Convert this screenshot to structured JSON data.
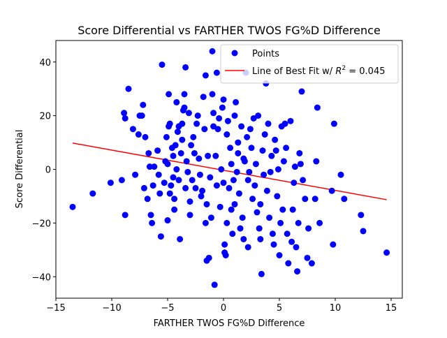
{
  "chart_data": {
    "type": "scatter",
    "title": "Score Differential vs FARTHER TWOS FG%D Difference",
    "xlabel": "FARTHER TWOS FG%D Difference",
    "ylabel": "Score Differential",
    "xlim": [
      -15,
      16
    ],
    "ylim": [
      -48,
      48
    ],
    "xticks": [
      -15,
      -10,
      -5,
      0,
      5,
      10,
      15
    ],
    "yticks": [
      -40,
      -20,
      0,
      20,
      40
    ],
    "xtick_labels": [
      "−15",
      "−10",
      "−5",
      "0",
      "5",
      "10",
      "15"
    ],
    "ytick_labels": [
      "−40",
      "−20",
      "0",
      "20",
      "40"
    ],
    "grid": false,
    "legend_position": "top-right",
    "legend": {
      "points_label": "Points",
      "fit_label_prefix": "Line of Best Fit w/ ",
      "fit_label_r2_symbol": "R",
      "fit_label_r2_sup": "2",
      "fit_label_value": " = 0.045"
    },
    "colors": {
      "points": "#0000ff",
      "fit_line": "#ff0000"
    },
    "fit_line": {
      "x": [
        -13.5,
        14.6
      ],
      "y": [
        9.8,
        -11.3
      ]
    },
    "series": [
      {
        "name": "Points",
        "points": [
          [
            -13.5,
            -14
          ],
          [
            -11.7,
            -9
          ],
          [
            -10.1,
            -5
          ],
          [
            -9.1,
            -4
          ],
          [
            -8.9,
            21
          ],
          [
            -8.8,
            19
          ],
          [
            -8.8,
            -17
          ],
          [
            -8.5,
            30
          ],
          [
            -8.1,
            15
          ],
          [
            -7.9,
            -2
          ],
          [
            -7.6,
            13
          ],
          [
            -7.5,
            20
          ],
          [
            -7.3,
            20
          ],
          [
            -7.2,
            24
          ],
          [
            -7.1,
            -7
          ],
          [
            -7.0,
            12
          ],
          [
            -6.8,
            -11
          ],
          [
            -6.7,
            6
          ],
          [
            -6.6,
            1
          ],
          [
            -6.5,
            -17
          ],
          [
            -6.4,
            -20
          ],
          [
            -6.3,
            -6
          ],
          [
            -6.2,
            1
          ],
          [
            -5.9,
            7
          ],
          [
            -5.8,
            -2
          ],
          [
            -5.7,
            -9
          ],
          [
            -5.6,
            -25
          ],
          [
            -5.5,
            39
          ],
          [
            -5.3,
            -5
          ],
          [
            -5.2,
            3
          ],
          [
            -5.1,
            12
          ],
          [
            -5.0,
            2
          ],
          [
            -5.0,
            -19
          ],
          [
            -4.9,
            28
          ],
          [
            -4.9,
            16
          ],
          [
            -4.8,
            17
          ],
          [
            -4.8,
            -9
          ],
          [
            -4.7,
            -6
          ],
          [
            -4.6,
            8
          ],
          [
            -4.5,
            5
          ],
          [
            -4.5,
            -3
          ],
          [
            -4.4,
            -15
          ],
          [
            -4.4,
            -11
          ],
          [
            -4.3,
            9
          ],
          [
            -4.2,
            0
          ],
          [
            -4.2,
            25
          ],
          [
            -4.1,
            14
          ],
          [
            -4.0,
            16
          ],
          [
            -4.0,
            -4
          ],
          [
            -3.9,
            -26
          ],
          [
            -3.8,
            6
          ],
          [
            -3.7,
            11
          ],
          [
            -3.7,
            17
          ],
          [
            -3.6,
            22
          ],
          [
            -3.5,
            23
          ],
          [
            -3.5,
            28
          ],
          [
            -3.4,
            38
          ],
          [
            -3.4,
            -7
          ],
          [
            -3.3,
            3
          ],
          [
            -3.2,
            -1
          ],
          [
            -3.1,
            21
          ],
          [
            -3.0,
            -17
          ],
          [
            -3.0,
            -12
          ],
          [
            -2.9,
            9
          ],
          [
            -2.8,
            -4
          ],
          [
            -2.7,
            12
          ],
          [
            -2.6,
            6
          ],
          [
            -2.5,
            -7
          ],
          [
            -2.4,
            17
          ],
          [
            -2.3,
            20
          ],
          [
            -2.2,
            4
          ],
          [
            -2.1,
            -2
          ],
          [
            -2.0,
            -10
          ],
          [
            -1.9,
            -8
          ],
          [
            -1.8,
            27
          ],
          [
            -1.7,
            15
          ],
          [
            -1.6,
            -20
          ],
          [
            -1.6,
            35
          ],
          [
            -1.5,
            -13
          ],
          [
            -1.5,
            -34
          ],
          [
            -1.4,
            5
          ],
          [
            -1.3,
            -33
          ],
          [
            -1.2,
            -3
          ],
          [
            -1.1,
            -18
          ],
          [
            -1.0,
            44
          ],
          [
            -1.0,
            28
          ],
          [
            -0.9,
            21
          ],
          [
            -0.9,
            16
          ],
          [
            -0.8,
            -43
          ],
          [
            -0.7,
            5
          ],
          [
            -0.6,
            36
          ],
          [
            -0.6,
            -6
          ],
          [
            -0.5,
            15
          ],
          [
            -0.4,
            19
          ],
          [
            -0.3,
            -14
          ],
          [
            -0.2,
            0
          ],
          [
            -0.1,
            23
          ],
          [
            0.0,
            26
          ],
          [
            0.0,
            -5
          ],
          [
            0.1,
            -31
          ],
          [
            0.1,
            -28
          ],
          [
            0.2,
            -32
          ],
          [
            0.3,
            -20
          ],
          [
            0.3,
            13
          ],
          [
            0.4,
            18
          ],
          [
            0.5,
            -7
          ],
          [
            0.6,
            8
          ],
          [
            0.7,
            2
          ],
          [
            0.7,
            -15
          ],
          [
            0.8,
            -24
          ],
          [
            0.9,
            -4
          ],
          [
            1.0,
            -13
          ],
          [
            1.0,
            20
          ],
          [
            1.1,
            25
          ],
          [
            1.2,
            -1
          ],
          [
            1.3,
            10
          ],
          [
            1.3,
            6
          ],
          [
            1.4,
            -9
          ],
          [
            1.5,
            -22
          ],
          [
            1.6,
            16
          ],
          [
            1.7,
            -18
          ],
          [
            1.8,
            4
          ],
          [
            1.8,
            -26
          ],
          [
            1.9,
            3
          ],
          [
            2.0,
            36
          ],
          [
            2.1,
            12
          ],
          [
            2.2,
            -4
          ],
          [
            2.2,
            -29
          ],
          [
            2.3,
            -1
          ],
          [
            2.4,
            15
          ],
          [
            2.5,
            8
          ],
          [
            2.6,
            -11
          ],
          [
            2.7,
            19
          ],
          [
            2.8,
            -6
          ],
          [
            2.9,
            2
          ],
          [
            3.0,
            -16
          ],
          [
            3.1,
            20
          ],
          [
            3.2,
            -22
          ],
          [
            3.3,
            -13
          ],
          [
            3.3,
            -26
          ],
          [
            3.4,
            -39
          ],
          [
            3.5,
            7
          ],
          [
            3.6,
            -2
          ],
          [
            3.7,
            13
          ],
          [
            3.8,
            32
          ],
          [
            3.9,
            -8
          ],
          [
            4.0,
            17
          ],
          [
            4.1,
            -18
          ],
          [
            4.2,
            -1
          ],
          [
            4.3,
            5
          ],
          [
            4.4,
            -24
          ],
          [
            4.5,
            -28
          ],
          [
            4.6,
            11
          ],
          [
            4.7,
            7
          ],
          [
            4.8,
            -10
          ],
          [
            4.9,
            0
          ],
          [
            5.0,
            -32
          ],
          [
            5.1,
            -20
          ],
          [
            5.2,
            16
          ],
          [
            5.3,
            -15
          ],
          [
            5.4,
            3
          ],
          [
            5.5,
            17
          ],
          [
            5.6,
            8
          ],
          [
            5.7,
            -24
          ],
          [
            5.8,
            -35
          ],
          [
            6.0,
            18
          ],
          [
            6.1,
            -27
          ],
          [
            6.2,
            -15
          ],
          [
            6.3,
            -5
          ],
          [
            6.4,
            1
          ],
          [
            6.5,
            -29
          ],
          [
            6.6,
            -38
          ],
          [
            6.7,
            -20
          ],
          [
            6.8,
            6
          ],
          [
            6.9,
            2
          ],
          [
            7.0,
            29
          ],
          [
            7.1,
            -4
          ],
          [
            7.3,
            -11
          ],
          [
            7.5,
            -33
          ],
          [
            7.6,
            -22
          ],
          [
            7.9,
            -35
          ],
          [
            8.2,
            -11
          ],
          [
            8.3,
            3
          ],
          [
            8.4,
            23
          ],
          [
            8.6,
            -20
          ],
          [
            9.7,
            -8
          ],
          [
            9.8,
            -28
          ],
          [
            9.9,
            17
          ],
          [
            10.5,
            -2
          ],
          [
            10.8,
            -11
          ],
          [
            12.3,
            -17
          ],
          [
            12.5,
            -23
          ],
          [
            14.6,
            -31
          ]
        ]
      }
    ]
  }
}
